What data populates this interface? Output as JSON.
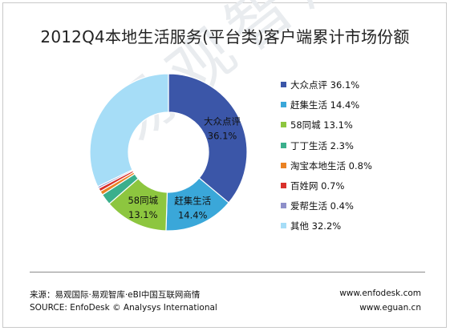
{
  "title": "2012Q4本地生活服务(平台类)客户端累计市场份额",
  "watermark": "易观智库",
  "chart_data": {
    "type": "pie",
    "variant": "donut",
    "title": "2012Q4本地生活服务(平台类)客户端累计市场份额",
    "series": [
      {
        "name": "大众点评",
        "value": 36.1,
        "color": "#3b56a8",
        "legend": "大众点评 36.1%",
        "data_label": [
          "大众点评",
          "36.1%"
        ]
      },
      {
        "name": "赶集生活",
        "value": 14.4,
        "color": "#3aa7d9",
        "legend": "赶集生活 14.4%",
        "data_label": [
          "赶集生活",
          "14.4%"
        ]
      },
      {
        "name": "58同城",
        "value": 13.1,
        "color": "#8dc63f",
        "legend": "58同城 13.1%",
        "data_label": [
          "58同城",
          "13.1%"
        ]
      },
      {
        "name": "丁丁生活",
        "value": 2.3,
        "color": "#3aaf8c",
        "legend": "丁丁生活 2.3%"
      },
      {
        "name": "淘宝本地生活",
        "value": 0.8,
        "color": "#e98224",
        "legend": "淘宝本地生活 0.8%"
      },
      {
        "name": "百姓网",
        "value": 0.7,
        "color": "#d9302b",
        "legend": "百姓网 0.7%"
      },
      {
        "name": "爱帮生活",
        "value": 0.4,
        "color": "#8e8fc9",
        "legend": "爱帮生活 0.4%"
      },
      {
        "name": "其他",
        "value": 32.2,
        "color": "#a6ddf7",
        "legend": "其他 32.2%"
      }
    ],
    "legend_position": "right"
  },
  "footer": {
    "source_cn": "来源：易观国际·易观智库·eBI中国互联网商情",
    "source_en": "SOURCE: EnfoDesk © Analysys International",
    "url_1": "www.enfodesk.com",
    "url_2": "www.eguan.cn"
  }
}
